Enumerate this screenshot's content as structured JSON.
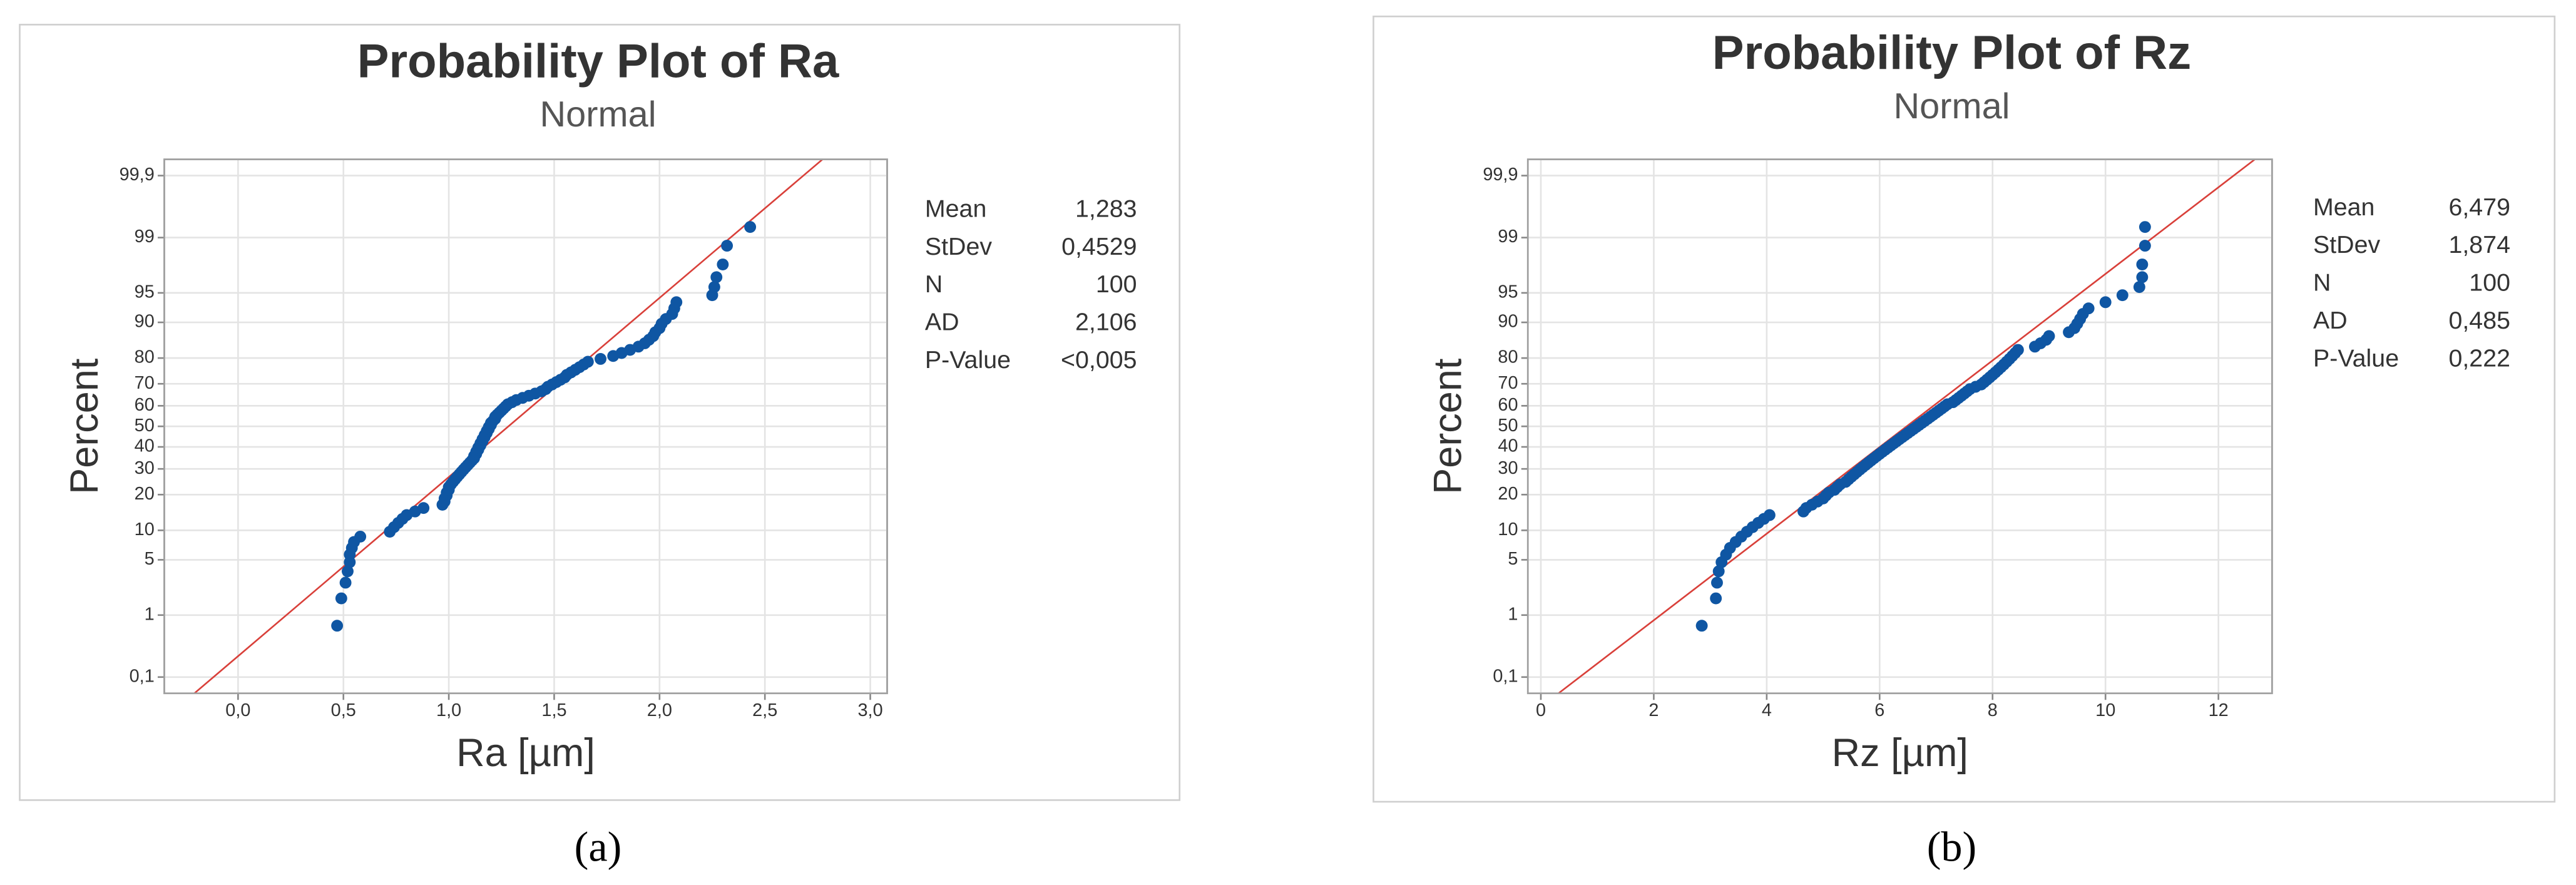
{
  "chart_data": [
    {
      "type": "scatter",
      "title": "Probability Plot of Ra",
      "subtitle": "Normal",
      "x_label": "Ra [µm]",
      "y_label": "Percent",
      "caption": "(a)",
      "color": "#0f56a3",
      "fit_line_color": "#d9403a",
      "y_scale": "normal-probability",
      "grid": true,
      "xlim": [
        -0.35,
        3.08
      ],
      "ylim": [
        0.05,
        99.95
      ],
      "xticks": [
        {
          "value": 0,
          "label": "0,0"
        },
        {
          "value": 0.5,
          "label": "0,5"
        },
        {
          "value": 1,
          "label": "1,0"
        },
        {
          "value": 1.5,
          "label": "1,5"
        },
        {
          "value": 2,
          "label": "2,0"
        },
        {
          "value": 2.5,
          "label": "2,5"
        },
        {
          "value": 3,
          "label": "3,0"
        }
      ],
      "yticks": [
        {
          "value": 0.1,
          "label": "0,1"
        },
        1,
        5,
        10,
        20,
        30,
        40,
        50,
        60,
        70,
        80,
        90,
        95,
        99,
        {
          "value": 99.9,
          "label": "99,9"
        }
      ],
      "stats_labels": [
        "Mean",
        "StDev",
        "N",
        "AD",
        "P-Value"
      ],
      "stats_values": [
        {
          "value": 1.283,
          "label": "1,283"
        },
        {
          "value": 0.4529,
          "label": "0,4529"
        },
        100,
        {
          "value": 2.106,
          "label": "2,106"
        },
        "<0,005"
      ],
      "x": [
        0.47,
        0.49,
        0.51,
        0.52,
        0.53,
        0.53,
        0.54,
        0.55,
        0.58,
        0.72,
        0.74,
        0.76,
        0.78,
        0.8,
        0.84,
        0.88,
        0.97,
        0.98,
        0.98,
        0.99,
        0.99,
        1.0,
        1.0,
        1.01,
        1.02,
        1.03,
        1.04,
        1.05,
        1.06,
        1.07,
        1.08,
        1.09,
        1.1,
        1.11,
        1.12,
        1.12,
        1.13,
        1.13,
        1.14,
        1.14,
        1.15,
        1.15,
        1.16,
        1.16,
        1.17,
        1.17,
        1.18,
        1.18,
        1.19,
        1.19,
        1.2,
        1.2,
        1.21,
        1.22,
        1.22,
        1.23,
        1.24,
        1.25,
        1.26,
        1.27,
        1.28,
        1.3,
        1.32,
        1.35,
        1.38,
        1.41,
        1.44,
        1.46,
        1.47,
        1.49,
        1.51,
        1.53,
        1.55,
        1.56,
        1.58,
        1.6,
        1.62,
        1.64,
        1.66,
        1.72,
        1.78,
        1.82,
        1.86,
        1.9,
        1.93,
        1.95,
        1.97,
        1.98,
        2.0,
        2.01,
        2.03,
        2.06,
        2.07,
        2.08,
        2.25,
        2.26,
        2.27,
        2.3,
        2.32,
        2.43
      ],
      "values": [
        0.7,
        1.7,
        2.7,
        3.7,
        4.7,
        5.7,
        6.7,
        7.7,
        8.7,
        9.7,
        10.7,
        11.7,
        12.7,
        13.7,
        14.7,
        15.7,
        16.7,
        17.7,
        18.7,
        19.7,
        20.7,
        21.7,
        22.7,
        23.7,
        24.7,
        25.7,
        26.7,
        27.7,
        28.7,
        29.7,
        30.7,
        31.7,
        32.7,
        33.7,
        34.7,
        35.7,
        36.7,
        37.7,
        38.7,
        39.7,
        40.7,
        41.7,
        42.7,
        43.7,
        44.7,
        45.7,
        46.7,
        47.7,
        48.7,
        49.7,
        50.7,
        51.7,
        52.7,
        53.7,
        54.7,
        55.7,
        56.7,
        57.7,
        58.7,
        59.7,
        60.7,
        61.7,
        62.7,
        63.7,
        64.7,
        65.7,
        66.7,
        67.7,
        68.7,
        69.7,
        70.7,
        71.7,
        72.7,
        73.7,
        74.7,
        75.7,
        76.7,
        77.7,
        78.7,
        79.7,
        80.7,
        81.7,
        82.7,
        83.7,
        84.7,
        85.7,
        86.7,
        87.7,
        88.7,
        89.7,
        90.7,
        91.7,
        92.7,
        93.7,
        94.7,
        95.7,
        96.7,
        97.7,
        98.7,
        99.3
      ]
    },
    {
      "type": "scatter",
      "title": "Probability Plot of Rz",
      "subtitle": "Normal",
      "x_label": "Rz [µm]",
      "y_label": "Percent",
      "caption": "(b)",
      "color": "#0f56a3",
      "fit_line_color": "#d9403a",
      "y_scale": "normal-probability",
      "grid": true,
      "xlim": [
        -0.23,
        12.95
      ],
      "ylim": [
        0.05,
        99.95
      ],
      "xticks": [
        0,
        2,
        4,
        6,
        8,
        10,
        12
      ],
      "yticks": [
        {
          "value": 0.1,
          "label": "0,1"
        },
        1,
        5,
        10,
        20,
        30,
        40,
        50,
        60,
        70,
        80,
        90,
        95,
        99,
        {
          "value": 99.9,
          "label": "99,9"
        }
      ],
      "stats_labels": [
        "Mean",
        "StDev",
        "N",
        "AD",
        "P-Value"
      ],
      "stats_values": [
        {
          "value": 6.479,
          "label": "6,479"
        },
        {
          "value": 1.874,
          "label": "1,874"
        },
        100,
        {
          "value": 0.485,
          "label": "0,485"
        },
        {
          "value": 0.222,
          "label": "0,222"
        }
      ],
      "x": [
        2.85,
        3.1,
        3.12,
        3.15,
        3.2,
        3.28,
        3.35,
        3.45,
        3.55,
        3.65,
        3.75,
        3.85,
        3.95,
        4.05,
        4.65,
        4.7,
        4.8,
        4.9,
        5.0,
        5.05,
        5.1,
        5.2,
        5.25,
        5.3,
        5.4,
        5.45,
        5.5,
        5.55,
        5.6,
        5.65,
        5.7,
        5.75,
        5.8,
        5.85,
        5.9,
        5.95,
        6.0,
        6.05,
        6.1,
        6.15,
        6.2,
        6.25,
        6.3,
        6.35,
        6.4,
        6.45,
        6.5,
        6.55,
        6.6,
        6.65,
        6.7,
        6.75,
        6.8,
        6.85,
        6.9,
        6.95,
        7.0,
        7.05,
        7.1,
        7.15,
        7.2,
        7.3,
        7.35,
        7.4,
        7.45,
        7.5,
        7.55,
        7.6,
        7.7,
        7.8,
        7.85,
        7.9,
        7.95,
        8.0,
        8.05,
        8.1,
        8.15,
        8.2,
        8.25,
        8.3,
        8.35,
        8.4,
        8.45,
        8.75,
        8.85,
        8.95,
        9.0,
        9.35,
        9.45,
        9.5,
        9.55,
        9.6,
        9.7,
        10.0,
        10.3,
        10.6,
        10.65,
        10.65,
        10.7,
        10.7
      ],
      "values": [
        0.7,
        1.7,
        2.7,
        3.7,
        4.7,
        5.7,
        6.7,
        7.7,
        8.7,
        9.7,
        10.7,
        11.7,
        12.7,
        13.7,
        14.7,
        15.7,
        16.7,
        17.7,
        18.7,
        19.7,
        20.7,
        21.7,
        22.7,
        23.7,
        24.7,
        25.7,
        26.7,
        27.7,
        28.7,
        29.7,
        30.7,
        31.7,
        32.7,
        33.7,
        34.7,
        35.7,
        36.7,
        37.7,
        38.7,
        39.7,
        40.7,
        41.7,
        42.7,
        43.7,
        44.7,
        45.7,
        46.7,
        47.7,
        48.7,
        49.7,
        50.7,
        51.7,
        52.7,
        53.7,
        54.7,
        55.7,
        56.7,
        57.7,
        58.7,
        59.7,
        60.7,
        61.7,
        62.7,
        63.7,
        64.7,
        65.7,
        66.7,
        67.7,
        68.7,
        69.7,
        70.7,
        71.7,
        72.7,
        73.7,
        74.7,
        75.7,
        76.7,
        77.7,
        78.7,
        79.7,
        80.7,
        81.7,
        82.7,
        83.7,
        84.7,
        85.7,
        86.7,
        87.7,
        88.7,
        89.7,
        90.7,
        91.7,
        92.7,
        93.7,
        94.7,
        95.7,
        96.7,
        97.7,
        98.7,
        99.3
      ]
    }
  ]
}
